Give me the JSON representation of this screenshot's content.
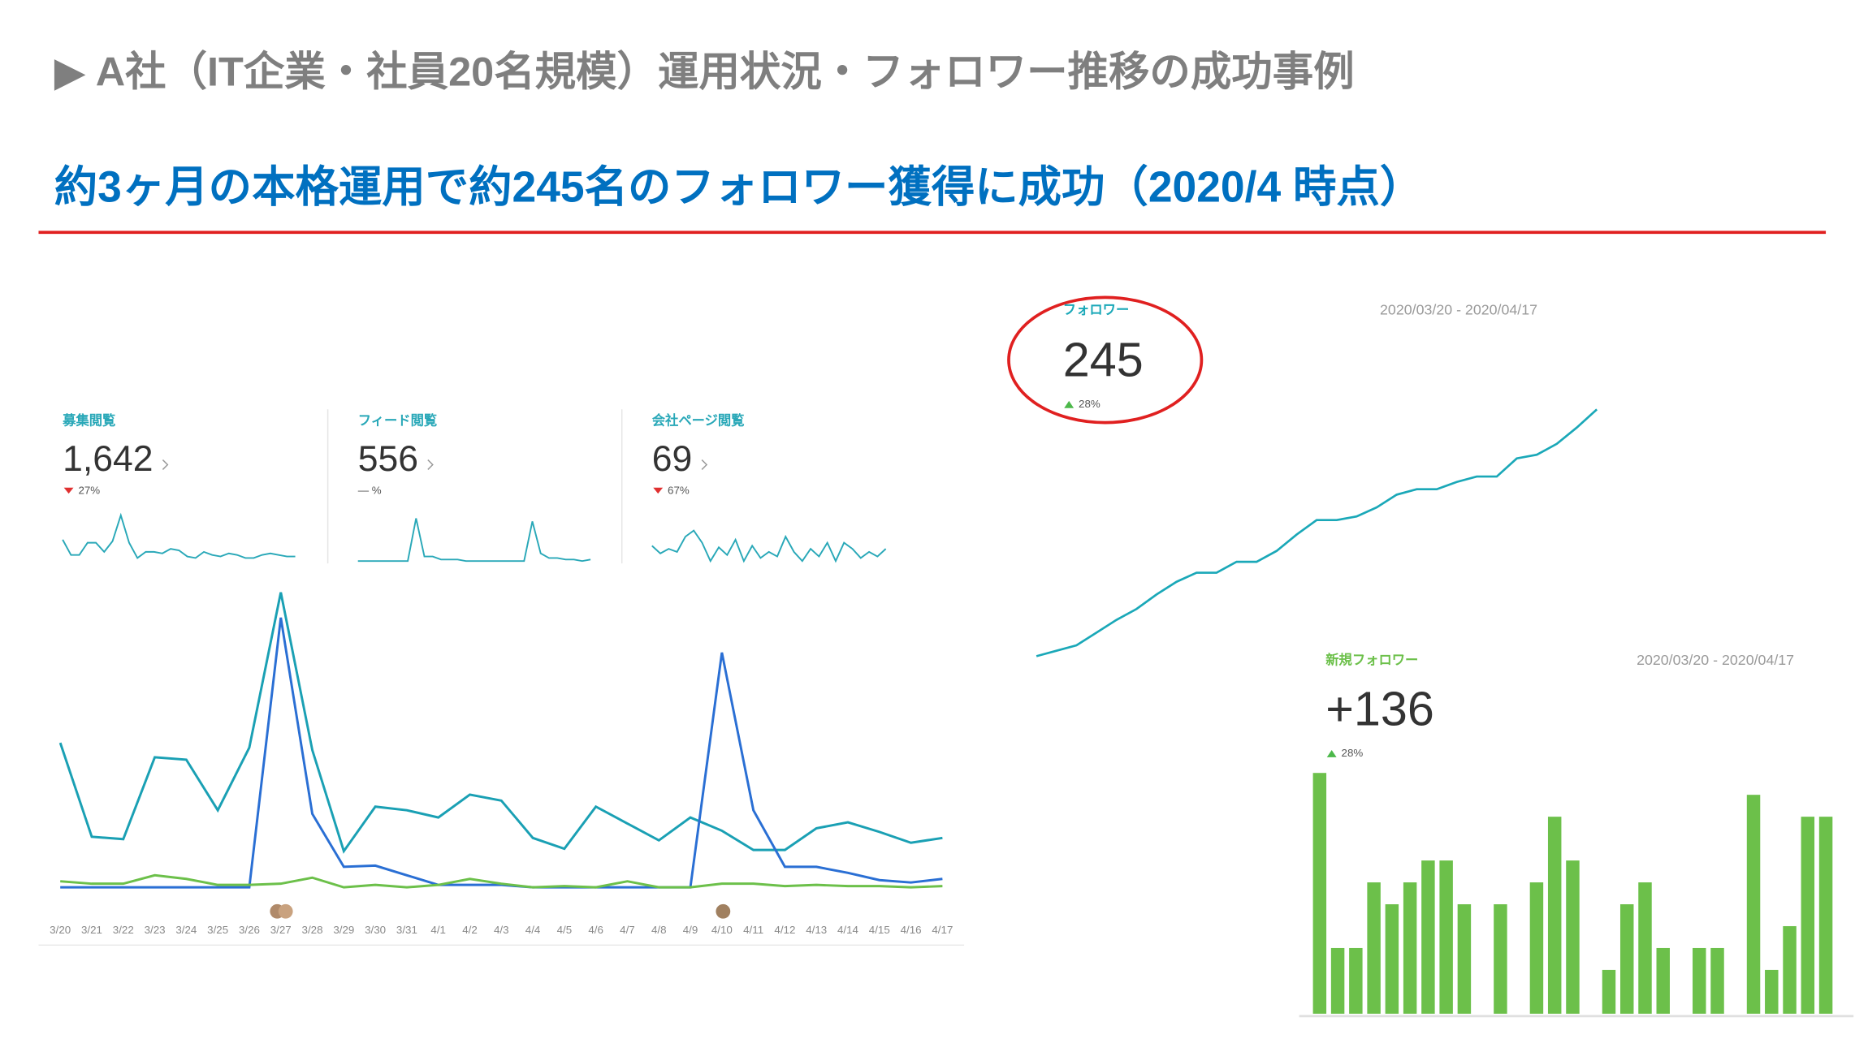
{
  "header": {
    "title": "▶ A社（IT企業・社員20名規模）運用状況・フォロワー推移の成功事例",
    "headline": "約3ヶ月の本格運用で約245名のフォロワー獲得に成功（2020/4 時点）"
  },
  "chart_data": [
    {
      "type": "line",
      "title": "募集閲覧",
      "metric": "1,642",
      "change": "27%",
      "trend": "down",
      "color": "#29a8b8",
      "ylim": [
        0,
        30
      ],
      "values": [
        14,
        4,
        4,
        12,
        12,
        6,
        13,
        30,
        12,
        2,
        6,
        6,
        5,
        8,
        7,
        3,
        2,
        6,
        4,
        3,
        5,
        4,
        2,
        2,
        4,
        5,
        4,
        3,
        3
      ]
    },
    {
      "type": "line",
      "title": "フィード閲覧",
      "metric": "556",
      "change": "— %",
      "trend": "flat",
      "color": "#29a8b8",
      "ylim": [
        0,
        30
      ],
      "values": [
        0,
        0,
        0,
        0,
        0,
        0,
        0,
        28,
        3,
        3,
        1,
        1,
        1,
        0,
        0,
        0,
        0,
        0,
        0,
        0,
        0,
        26,
        5,
        2,
        2,
        1,
        1,
        0,
        1
      ]
    },
    {
      "type": "line",
      "title": "会社ページ閲覧",
      "metric": "69",
      "change": "67%",
      "trend": "down",
      "color": "#29a8b8",
      "ylim": [
        0,
        30
      ],
      "values": [
        10,
        5,
        8,
        6,
        16,
        20,
        12,
        0,
        9,
        4,
        14,
        0,
        10,
        2,
        6,
        3,
        16,
        6,
        0,
        8,
        3,
        12,
        0,
        12,
        8,
        2,
        6,
        3,
        8
      ]
    },
    {
      "type": "line",
      "ylim": [
        0,
        250
      ],
      "categories": [
        "3/20",
        "3/21",
        "3/22",
        "3/23",
        "3/24",
        "3/25",
        "3/26",
        "3/27",
        "3/28",
        "3/29",
        "3/30",
        "3/31",
        "4/1",
        "4/2",
        "4/3",
        "4/4",
        "4/5",
        "4/6",
        "4/7",
        "4/8",
        "4/9",
        "4/10",
        "4/11",
        "4/12",
        "4/13",
        "4/14",
        "4/15",
        "4/16",
        "4/17"
      ],
      "series": [
        {
          "color": "#1aa0b4",
          "values": [
            120,
            42,
            40,
            108,
            106,
            64,
            116,
            245,
            114,
            30,
            67,
            64,
            58,
            77,
            72,
            41,
            32,
            67,
            53,
            39,
            58,
            47,
            31,
            31,
            49,
            54,
            46,
            37,
            41
          ]
        },
        {
          "color": "#2a6fd4",
          "values": [
            0,
            0,
            0,
            0,
            0,
            0,
            0,
            224,
            61,
            17,
            18,
            10,
            2,
            2,
            2,
            0,
            0,
            0,
            0,
            0,
            0,
            195,
            64,
            17,
            17,
            12,
            6,
            4,
            7
          ]
        },
        {
          "color": "#6cc04a",
          "values": [
            5,
            3,
            3,
            10,
            7,
            2,
            2,
            3,
            8,
            0,
            2,
            0,
            2,
            7,
            3,
            0,
            1,
            0,
            5,
            0,
            0,
            3,
            3,
            1,
            2,
            1,
            1,
            0,
            1
          ]
        }
      ]
    },
    {
      "type": "line",
      "title": "フォロワー",
      "metric": "245",
      "change": "28%",
      "trend": "up",
      "subtitle": "2020/03/20 - 2020/04/17",
      "color": "#1aa8b8",
      "ylim": [
        100,
        250
      ],
      "values": [
        109,
        112,
        115,
        122,
        129,
        135,
        143,
        150,
        155,
        155,
        161,
        161,
        167,
        176,
        184,
        184,
        186,
        191,
        198,
        201,
        201,
        205,
        208,
        208,
        218,
        220,
        226,
        235,
        245
      ]
    },
    {
      "type": "bar",
      "title": "新規フォロワー",
      "metric": "+136",
      "change": "28%",
      "trend": "up",
      "subtitle": "2020/03/20 - 2020/04/17",
      "color": "#6cc04a",
      "ylim": [
        0,
        11
      ],
      "values": [
        11,
        3,
        3,
        6,
        5,
        6,
        7,
        7,
        5,
        0,
        5,
        0,
        6,
        9,
        7,
        0,
        2,
        5,
        6,
        3,
        0,
        3,
        3,
        0,
        10,
        2,
        4,
        9,
        9
      ]
    }
  ]
}
